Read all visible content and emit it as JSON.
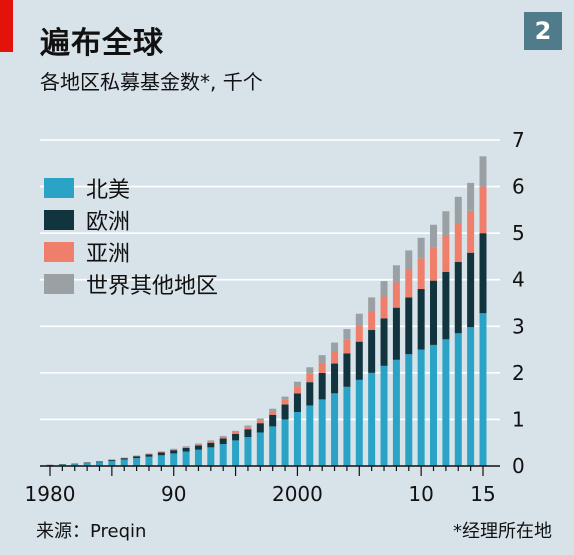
{
  "header": {
    "title": "遍布全球",
    "subtitle": "各地区私募基金数*, 千个",
    "badge": "2"
  },
  "footer": {
    "source": "来源：Preqin",
    "note": "*经理所在地"
  },
  "colors": {
    "north_america": "#2aa3c6",
    "europe": "#11343f",
    "asia": "#ef7f6a",
    "rest": "#9aa0a3",
    "background": "#d8e3e9",
    "grid": "#ffffff"
  },
  "chart_data": {
    "type": "bar",
    "stacked": true,
    "x": [
      1980,
      1981,
      1982,
      1983,
      1984,
      1985,
      1986,
      1987,
      1988,
      1989,
      1990,
      1991,
      1992,
      1993,
      1994,
      1995,
      1996,
      1997,
      1998,
      1999,
      2000,
      2001,
      2002,
      2003,
      2004,
      2005,
      2006,
      2007,
      2008,
      2009,
      2010,
      2011,
      2012,
      2013,
      2014,
      2015
    ],
    "xticks": [
      {
        "value": 1980,
        "label": "1980"
      },
      {
        "value": 1990,
        "label": "90"
      },
      {
        "value": 2000,
        "label": "2000"
      },
      {
        "value": 2010,
        "label": "10"
      },
      {
        "value": 2015,
        "label": "15"
      }
    ],
    "yticks": [
      0,
      1,
      2,
      3,
      4,
      5,
      6,
      7
    ],
    "ylim": [
      0,
      7
    ],
    "legend_position": "top-left",
    "series": [
      {
        "name": "北美",
        "color": "#2aa3c6",
        "values": [
          0.02,
          0.03,
          0.04,
          0.06,
          0.08,
          0.11,
          0.14,
          0.17,
          0.2,
          0.23,
          0.27,
          0.31,
          0.35,
          0.4,
          0.47,
          0.55,
          0.62,
          0.72,
          0.85,
          1.0,
          1.16,
          1.3,
          1.43,
          1.56,
          1.7,
          1.85,
          2.0,
          2.15,
          2.28,
          2.4,
          2.5,
          2.6,
          2.72,
          2.85,
          2.98,
          3.28
        ]
      },
      {
        "name": "欧洲",
        "color": "#11343f",
        "values": [
          0.005,
          0.008,
          0.01,
          0.015,
          0.02,
          0.025,
          0.03,
          0.04,
          0.05,
          0.06,
          0.07,
          0.08,
          0.09,
          0.1,
          0.12,
          0.14,
          0.17,
          0.2,
          0.25,
          0.32,
          0.4,
          0.5,
          0.57,
          0.64,
          0.72,
          0.82,
          0.92,
          1.02,
          1.12,
          1.22,
          1.3,
          1.38,
          1.45,
          1.53,
          1.6,
          1.72
        ]
      },
      {
        "name": "亚洲",
        "color": "#ef7f6a",
        "values": [
          0,
          0,
          0,
          0,
          0.003,
          0.005,
          0.007,
          0.01,
          0.012,
          0.015,
          0.02,
          0.024,
          0.028,
          0.032,
          0.036,
          0.04,
          0.05,
          0.06,
          0.08,
          0.1,
          0.15,
          0.19,
          0.22,
          0.26,
          0.3,
          0.35,
          0.41,
          0.47,
          0.54,
          0.6,
          0.66,
          0.72,
          0.78,
          0.84,
          0.9,
          1.0
        ]
      },
      {
        "name": "世界其他地区",
        "color": "#9aa0a3",
        "values": [
          0,
          0,
          0,
          0,
          0,
          0.002,
          0.003,
          0.005,
          0.006,
          0.008,
          0.01,
          0.012,
          0.015,
          0.018,
          0.02,
          0.025,
          0.03,
          0.04,
          0.05,
          0.07,
          0.1,
          0.13,
          0.16,
          0.19,
          0.22,
          0.25,
          0.29,
          0.33,
          0.37,
          0.41,
          0.44,
          0.48,
          0.52,
          0.56,
          0.6,
          0.65
        ]
      }
    ]
  }
}
